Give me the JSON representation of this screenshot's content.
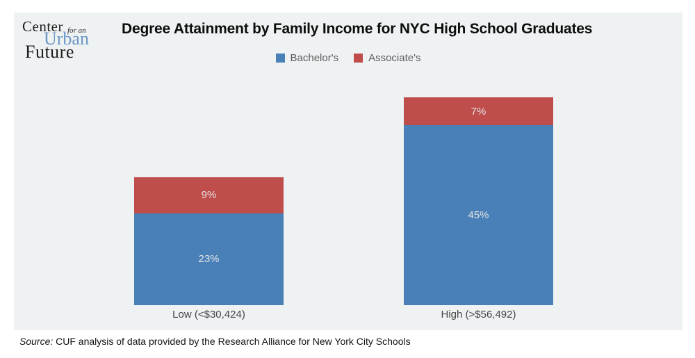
{
  "logo": {
    "center": "Center",
    "for_an": "for an",
    "urban": "Urban",
    "future": "Future"
  },
  "chart_data": {
    "type": "bar",
    "stacked": true,
    "title": "Degree Attainment by Family Income for NYC High School Graduates",
    "categories": [
      "Low (<$30,424)",
      "High (>$56,492)"
    ],
    "series": [
      {
        "name": "Bachelor's",
        "color": "#4a80b8",
        "values": [
          23,
          45
        ],
        "labels": [
          "23%",
          "45%"
        ]
      },
      {
        "name": "Associate's",
        "color": "#bf4d4b",
        "values": [
          9,
          7
        ],
        "labels": [
          "9%",
          "7%"
        ]
      }
    ],
    "ylabel": "",
    "xlabel": "",
    "ylim": [
      0,
      52
    ],
    "grid": false,
    "legend_position": "top-center",
    "value_label_color": "#e3e3e3"
  },
  "source": {
    "prefix": "Source:",
    "text": "CUF analysis of data provided by the Research Alliance for New York City Schools"
  },
  "colors": {
    "panel_bg": "#eff2f3",
    "bachelors_blue": "#4a80b8",
    "associates_red": "#bf4d4b",
    "logo_blue": "#6c97c6"
  }
}
